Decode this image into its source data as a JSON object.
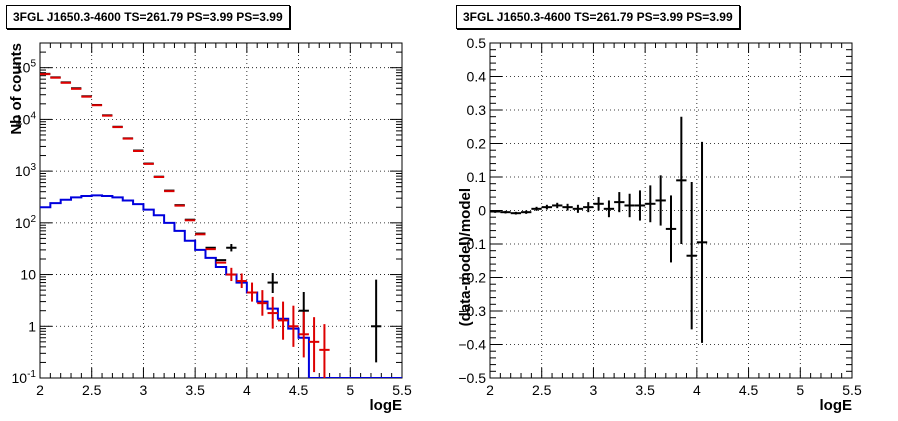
{
  "panels": [
    {
      "title": "3FGL J1650.3-4600 TS=261.79 PS=3.99 PS=3.99"
    },
    {
      "title": "3FGL J1650.3-4600 TS=261.79 PS=3.99 PS=3.99"
    }
  ],
  "colors": {
    "data": "#000000",
    "model": "#dd0000",
    "source": "#0000dd",
    "grid": "#000000"
  },
  "chart_data": [
    {
      "type": "line",
      "title": "3FGL J1650.3-4600 TS=261.79 PS=3.99 PS=3.99",
      "xlabel": "logE",
      "ylabel": "Nb of counts",
      "xlim": [
        2,
        5.5
      ],
      "ylim": [
        0.1,
        300000
      ],
      "yscale": "log",
      "grid": true,
      "xticks": [
        "2",
        "2.5",
        "3",
        "3.5",
        "4",
        "4.5",
        "5",
        "5.5"
      ],
      "yticks": [
        {
          "value": 0.1,
          "base": "10",
          "exp": "-1"
        },
        {
          "value": 1,
          "base": "1",
          "exp": ""
        },
        {
          "value": 10,
          "base": "10",
          "exp": ""
        },
        {
          "value": 100,
          "base": "10",
          "exp": "2"
        },
        {
          "value": 1000,
          "base": "10",
          "exp": "3"
        },
        {
          "value": 10000,
          "base": "10",
          "exp": "4"
        },
        {
          "value": 100000,
          "base": "10",
          "exp": "5"
        }
      ],
      "bin_edges": [
        2.0,
        2.1,
        2.2,
        2.3,
        2.4,
        2.5,
        2.6,
        2.7,
        2.8,
        2.9,
        3.0,
        3.1,
        3.2,
        3.3,
        3.4,
        3.5,
        3.6,
        3.7,
        3.8,
        3.9,
        4.0,
        4.1,
        4.2,
        4.3,
        4.4,
        4.5,
        4.6,
        4.7,
        4.8,
        4.9,
        5.0,
        5.1,
        5.2,
        5.3,
        5.4,
        5.5
      ],
      "series": [
        {
          "kind": "data-points",
          "x": [
            2.05,
            2.15,
            2.25,
            2.35,
            2.45,
            2.55,
            2.65,
            2.75,
            2.85,
            2.95,
            3.05,
            3.15,
            3.25,
            3.35,
            3.45,
            3.55,
            3.65,
            3.75,
            3.85,
            4.25,
            4.55,
            5.25
          ],
          "values": [
            76000,
            65000,
            52000,
            40000,
            28000,
            19000,
            12000,
            7200,
            4300,
            2500,
            1400,
            780,
            420,
            220,
            115,
            62,
            33,
            19,
            33,
            7,
            2,
            1
          ],
          "err_lo": [
            0,
            0,
            0,
            0,
            0,
            0,
            0,
            0,
            0,
            0,
            0,
            0,
            0,
            0,
            0,
            0,
            0,
            0,
            5,
            2.6,
            1.3,
            0.8
          ],
          "err_hi": [
            0,
            0,
            0,
            0,
            0,
            0,
            0,
            0,
            0,
            0,
            0,
            0,
            0,
            0,
            0,
            0,
            0,
            0,
            6,
            3.7,
            2.6,
            7.0
          ]
        },
        {
          "kind": "model-points",
          "x": [
            2.05,
            2.15,
            2.25,
            2.35,
            2.45,
            2.55,
            2.65,
            2.75,
            2.85,
            2.95,
            3.05,
            3.15,
            3.25,
            3.35,
            3.45,
            3.55,
            3.65,
            3.75,
            3.85,
            3.95,
            4.05,
            4.15,
            4.25,
            4.35,
            4.45,
            4.55,
            4.65,
            4.75
          ],
          "values": [
            75000,
            64000,
            51000,
            39000,
            27500,
            18800,
            11800,
            7100,
            4250,
            2450,
            1380,
            770,
            410,
            215,
            112,
            60,
            31,
            17,
            10,
            7.5,
            4.5,
            2.8,
            1.8,
            1.3,
            1.0,
            0.7,
            0.5,
            0.35
          ],
          "err_lo": [
            0,
            0,
            0,
            0,
            0,
            0,
            0,
            0,
            0,
            0,
            0,
            0,
            0,
            0,
            0,
            0,
            0,
            0,
            2.5,
            2.0,
            1.5,
            1.2,
            0.9,
            0.75,
            0.6,
            0.45,
            0.37,
            0.27
          ],
          "err_hi": [
            0,
            0,
            0,
            0,
            0,
            0,
            0,
            0,
            0,
            0,
            0,
            0,
            0,
            0,
            0,
            0,
            0,
            0,
            3.5,
            3.0,
            2.5,
            2.2,
            1.9,
            1.7,
            1.5,
            1.2,
            1.0,
            0.75
          ]
        },
        {
          "kind": "source-histogram",
          "values": [
            200,
            240,
            280,
            310,
            330,
            340,
            330,
            310,
            270,
            230,
            180,
            140,
            100,
            70,
            45,
            30,
            21,
            14,
            10,
            7,
            4.5,
            3,
            2.2,
            1.4,
            0.9,
            0.6,
            0.1,
            0.1,
            0.1,
            0.1,
            0.1,
            0.1,
            0.1,
            0.1,
            0.1
          ]
        }
      ]
    },
    {
      "type": "scatter",
      "title": "3FGL J1650.3-4600 TS=261.79 PS=3.99 PS=3.99",
      "xlabel": "logE",
      "ylabel": "(data-model)/model",
      "xlim": [
        2,
        5.5
      ],
      "ylim": [
        -0.5,
        0.5
      ],
      "grid": true,
      "xticks": [
        "2",
        "2.5",
        "3",
        "3.5",
        "4",
        "4.5",
        "5",
        "5.5"
      ],
      "yticks": [
        "-0.5",
        "-0.4",
        "-0.3",
        "-0.2",
        "-0.1",
        "0",
        "0.1",
        "0.2",
        "0.3",
        "0.4",
        "0.5"
      ],
      "series": [
        {
          "kind": "residuals",
          "x": [
            2.05,
            2.15,
            2.25,
            2.35,
            2.45,
            2.55,
            2.65,
            2.75,
            2.85,
            2.95,
            3.05,
            3.15,
            3.25,
            3.35,
            3.45,
            3.55,
            3.65,
            3.75,
            3.85,
            3.95,
            4.05
          ],
          "values": [
            -0.003,
            -0.005,
            -0.008,
            -0.005,
            0.005,
            0.01,
            0.015,
            0.01,
            0.005,
            0.01,
            0.02,
            0.005,
            0.025,
            0.015,
            0.015,
            0.02,
            0.03,
            -0.055,
            0.09,
            -0.135,
            -0.095
          ],
          "err": [
            0.004,
            0.004,
            0.004,
            0.005,
            0.006,
            0.007,
            0.008,
            0.01,
            0.012,
            0.015,
            0.02,
            0.025,
            0.03,
            0.035,
            0.045,
            0.055,
            0.075,
            0.1,
            0.19,
            0.22,
            0.3
          ]
        }
      ]
    }
  ]
}
